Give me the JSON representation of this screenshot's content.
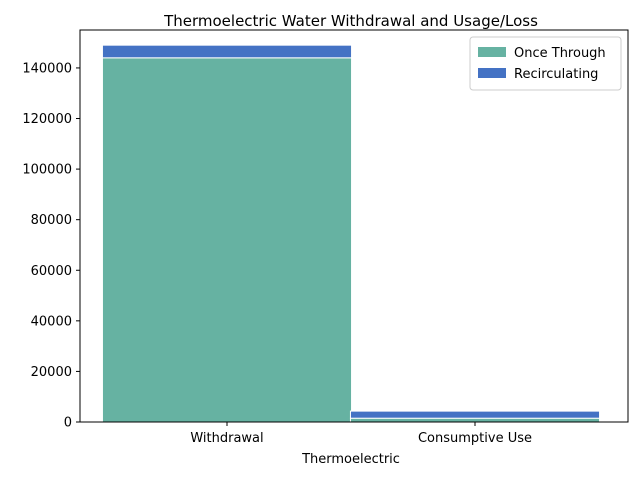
{
  "chart_data": {
    "type": "bar",
    "stacked": true,
    "title": "Thermoelectric Water Withdrawal and Usage/Loss",
    "xlabel": "Thermoelectric",
    "ylabel": "",
    "categories": [
      "Withdrawal",
      "Consumptive Use"
    ],
    "series": [
      {
        "name": "Once Through",
        "values": [
          144000,
          1500
        ],
        "color": "#66b2a2"
      },
      {
        "name": "Recirculating",
        "values": [
          5000,
          2800
        ],
        "color": "#4472c4"
      }
    ],
    "ylim": [
      0,
      155000
    ],
    "yticks": [
      0,
      20000,
      40000,
      60000,
      80000,
      100000,
      120000,
      140000
    ],
    "grid": false,
    "legend_position": "top-right"
  }
}
